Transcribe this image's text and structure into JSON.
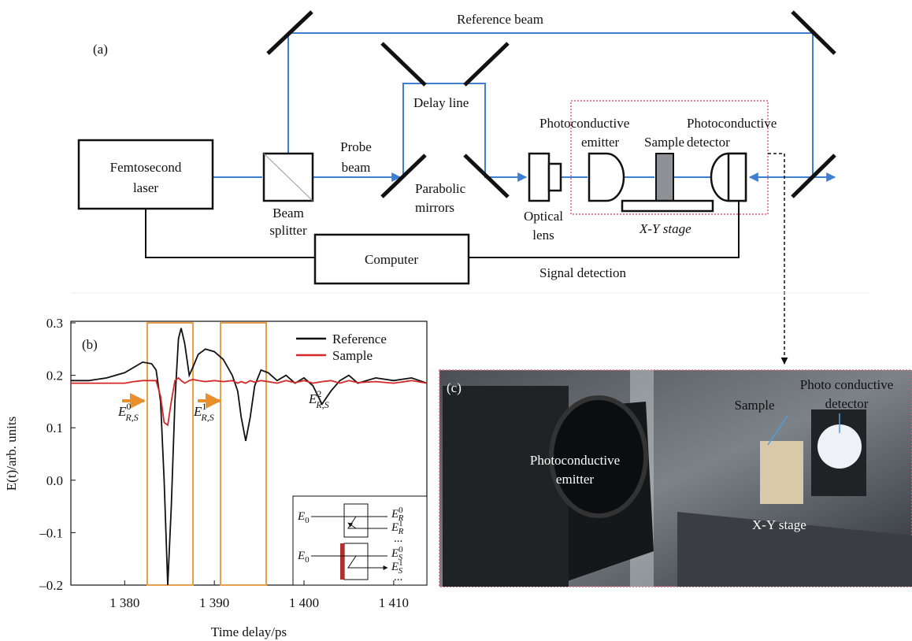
{
  "diagram": {
    "panel_label": "(a)",
    "reference_beam": "Reference beam",
    "laser": [
      "Femtosecond",
      "laser"
    ],
    "beam_splitter": [
      "Beam",
      "splitter"
    ],
    "probe_beam": [
      "Probe",
      "beam"
    ],
    "delay_line": "Delay line",
    "parabolic_mirrors": [
      "Parabolic",
      "mirrors"
    ],
    "optical_lens": [
      "Optical",
      "lens"
    ],
    "emitter": [
      "Photoconductive",
      "emitter"
    ],
    "sample": "Sample",
    "detector": [
      "Photoconductive",
      "detector"
    ],
    "stage": "X-Y stage",
    "computer": "Computer",
    "signal_detection": "Signal detection"
  },
  "chart_data": {
    "type": "line",
    "panel_label": "(b)",
    "xlabel": "Time delay/ps",
    "ylabel": "E(t)/arb. units",
    "x": [
      1374,
      1376,
      1378,
      1380,
      1381,
      1382,
      1383,
      1383.5,
      1384,
      1384.4,
      1384.8,
      1385.2,
      1385.6,
      1386,
      1386.3,
      1386.7,
      1387.2,
      1387.6,
      1388.2,
      1389,
      1390,
      1391,
      1392,
      1392.6,
      1393,
      1393.5,
      1394,
      1394.5,
      1395.2,
      1396,
      1397,
      1398,
      1399,
      1400,
      1401,
      1402,
      1403,
      1404,
      1405,
      1406,
      1408,
      1410,
      1412,
      1413.7
    ],
    "series": [
      {
        "name": "Reference",
        "color": "#111111",
        "values": [
          0.19,
          0.19,
          0.195,
          0.205,
          0.215,
          0.225,
          0.222,
          0.21,
          0.15,
          0.0,
          -0.2,
          -0.05,
          0.15,
          0.27,
          0.29,
          0.26,
          0.2,
          0.215,
          0.24,
          0.25,
          0.245,
          0.23,
          0.2,
          0.17,
          0.12,
          0.075,
          0.12,
          0.18,
          0.21,
          0.205,
          0.19,
          0.2,
          0.185,
          0.195,
          0.18,
          0.145,
          0.17,
          0.19,
          0.2,
          0.185,
          0.195,
          0.19,
          0.195,
          0.185
        ]
      },
      {
        "name": "Sample",
        "color": "#d62728",
        "values": [
          0.185,
          0.185,
          0.185,
          0.185,
          0.188,
          0.19,
          0.19,
          0.19,
          0.16,
          0.11,
          0.105,
          0.15,
          0.19,
          0.195,
          0.19,
          0.185,
          0.19,
          0.192,
          0.19,
          0.188,
          0.19,
          0.188,
          0.19,
          0.185,
          0.188,
          0.185,
          0.19,
          0.187,
          0.19,
          0.188,
          0.185,
          0.19,
          0.186,
          0.19,
          0.185,
          0.188,
          0.19,
          0.185,
          0.19,
          0.186,
          0.188,
          0.185,
          0.19,
          0.185
        ]
      }
    ],
    "xlim": [
      1374,
      1413.7
    ],
    "ylim": [
      -0.2,
      0.3
    ],
    "xticks": [
      {
        "value": 1380,
        "label": "1 380"
      },
      {
        "value": 1390,
        "label": "1 390"
      },
      {
        "value": 1400,
        "label": "1 400"
      },
      {
        "value": 1410,
        "label": "1 410"
      }
    ],
    "yticks": [
      {
        "value": -0.2,
        "label": "–0.2"
      },
      {
        "value": -0.1,
        "label": "–0.1"
      },
      {
        "value": 0,
        "label": "0.0"
      },
      0.1,
      0.2,
      0.3
    ],
    "legend": "upper right",
    "annotations": [
      {
        "base": "E",
        "sup": "0",
        "sub": "R,S"
      },
      {
        "base": "E",
        "sup": "1",
        "sub": "R,S"
      },
      {
        "base": "E",
        "sup": "2",
        "sub": "R,S"
      }
    ],
    "inset": {
      "reference": [
        {
          "base": "E",
          "sub": "0"
        },
        {
          "base": "E",
          "sup": "0",
          "sub": "R"
        },
        {
          "base": "E",
          "sup": "1",
          "sub": "R"
        },
        "..."
      ],
      "sample": [
        {
          "base": "E",
          "sub": "0"
        },
        {
          "base": "E",
          "sup": "0",
          "sub": "S"
        },
        {
          "base": "E",
          "sup": "1",
          "sub": "S"
        },
        "..."
      ]
    }
  },
  "photo": {
    "panel_label": "(c)",
    "emitter": [
      "Photoconductive",
      "emitter"
    ],
    "sample": "Sample",
    "detector": [
      "Photo conductive",
      "detector"
    ],
    "stage": "X-Y stage"
  }
}
